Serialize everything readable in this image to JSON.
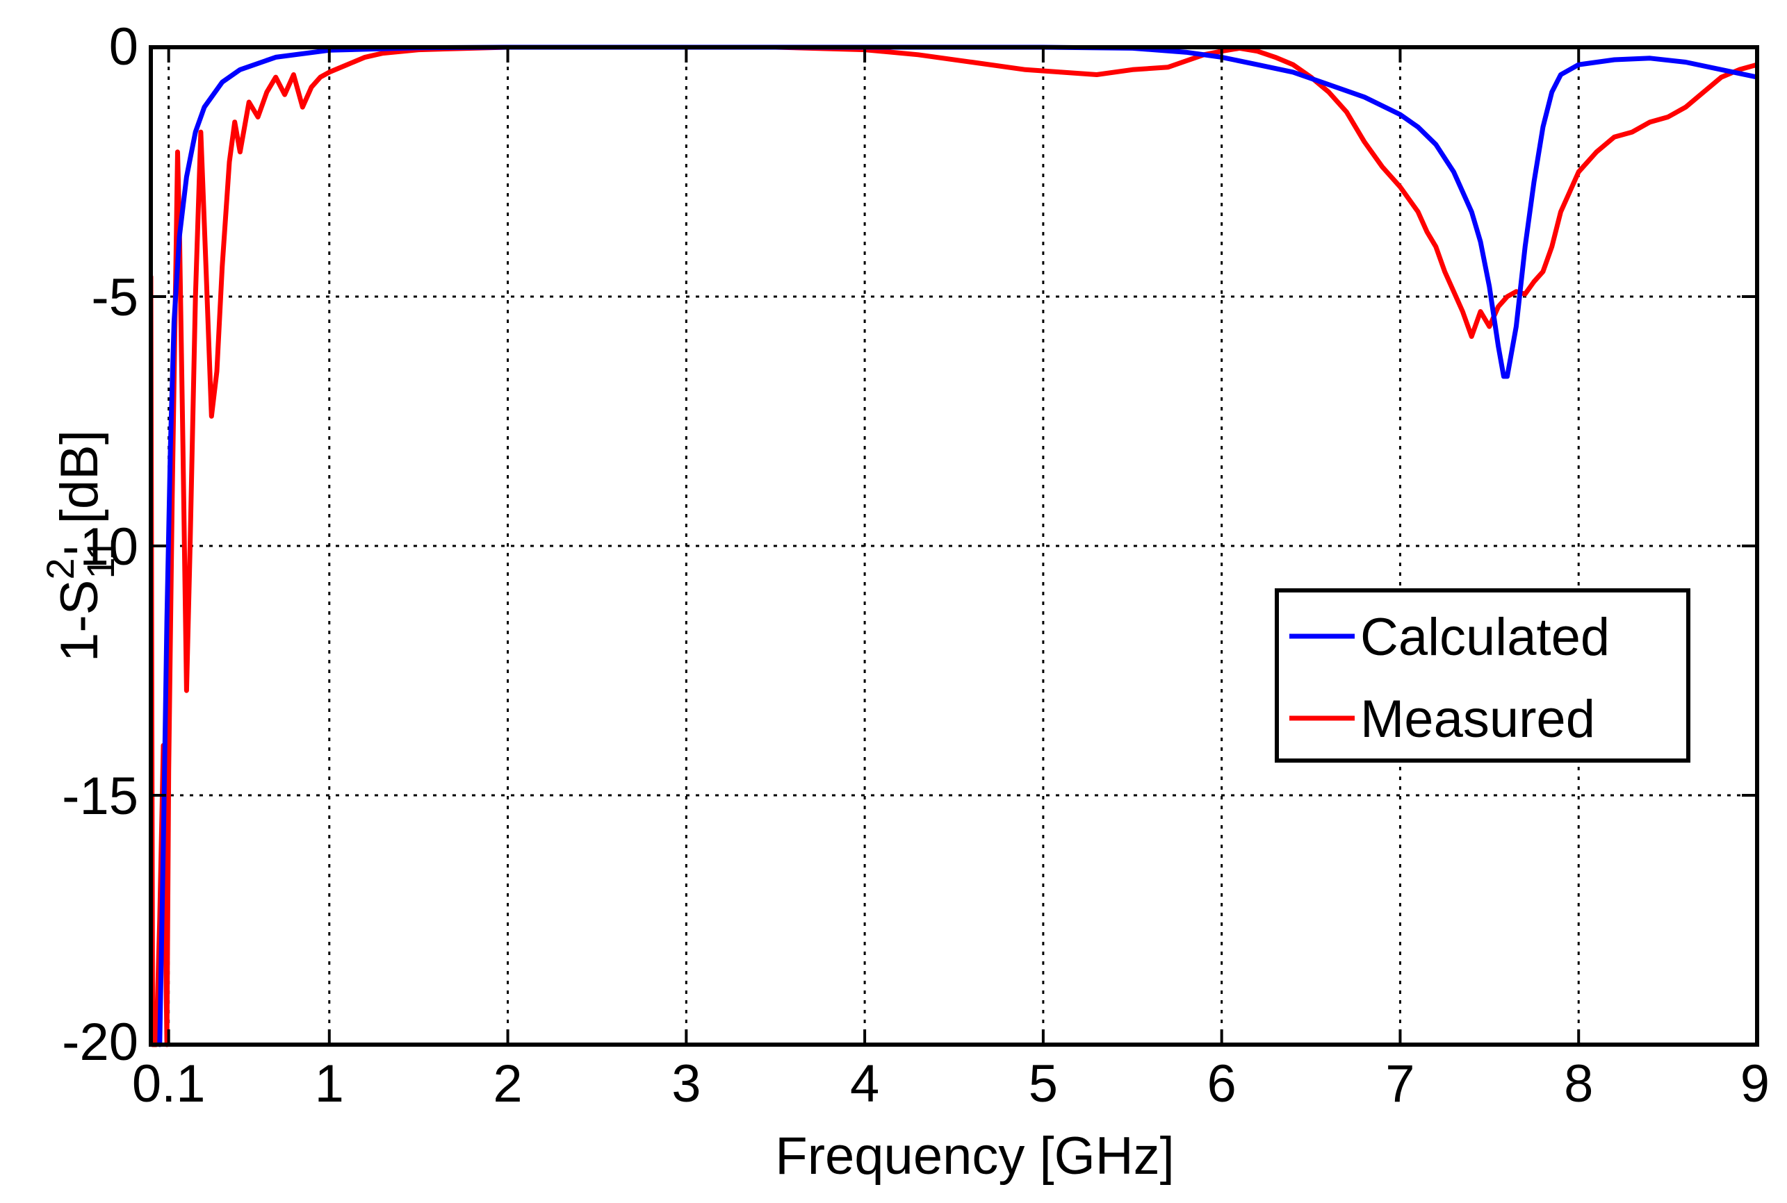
{
  "chart_data": {
    "type": "line",
    "xlabel": "Frequency [GHz]",
    "ylabel": {
      "prefix": "1-S",
      "superscript": "2",
      "subscript": "11",
      "suffix": " [dB]"
    },
    "xlim": [
      0,
      9
    ],
    "ylim": [
      -20,
      0
    ],
    "grid": true,
    "legend_position": "right",
    "x_ticks": [
      0.1,
      1,
      2,
      3,
      4,
      5,
      6,
      7,
      8,
      9
    ],
    "x_tick_labels": [
      "0.1",
      "1",
      "2",
      "3",
      "4",
      "5",
      "6",
      "7",
      "8",
      "9"
    ],
    "y_ticks": [
      0,
      -5,
      -10,
      -15,
      -20
    ],
    "y_tick_labels": [
      "0",
      "-5",
      "-10",
      "-15",
      "-20"
    ],
    "series": [
      {
        "name": "Calculated",
        "color": "#0000ff",
        "points": [
          [
            0.05,
            -20
          ],
          [
            0.07,
            -16
          ],
          [
            0.09,
            -11.5
          ],
          [
            0.11,
            -8
          ],
          [
            0.13,
            -5.5
          ],
          [
            0.16,
            -3.8
          ],
          [
            0.2,
            -2.6
          ],
          [
            0.25,
            -1.7
          ],
          [
            0.3,
            -1.2
          ],
          [
            0.4,
            -0.7
          ],
          [
            0.5,
            -0.45
          ],
          [
            0.7,
            -0.2
          ],
          [
            1.0,
            -0.06
          ],
          [
            1.5,
            -0.01
          ],
          [
            2,
            0
          ],
          [
            3,
            0
          ],
          [
            4,
            0
          ],
          [
            5,
            0
          ],
          [
            5.5,
            -0.02
          ],
          [
            5.8,
            -0.1
          ],
          [
            6.0,
            -0.2
          ],
          [
            6.2,
            -0.35
          ],
          [
            6.4,
            -0.5
          ],
          [
            6.6,
            -0.75
          ],
          [
            6.8,
            -1.0
          ],
          [
            7.0,
            -1.35
          ],
          [
            7.1,
            -1.6
          ],
          [
            7.2,
            -1.95
          ],
          [
            7.3,
            -2.5
          ],
          [
            7.4,
            -3.3
          ],
          [
            7.45,
            -3.9
          ],
          [
            7.5,
            -4.8
          ],
          [
            7.55,
            -6.0
          ],
          [
            7.58,
            -6.6
          ],
          [
            7.6,
            -6.6
          ],
          [
            7.65,
            -5.6
          ],
          [
            7.7,
            -4.0
          ],
          [
            7.75,
            -2.7
          ],
          [
            7.8,
            -1.6
          ],
          [
            7.85,
            -0.9
          ],
          [
            7.9,
            -0.55
          ],
          [
            8.0,
            -0.35
          ],
          [
            8.2,
            -0.25
          ],
          [
            8.4,
            -0.22
          ],
          [
            8.6,
            -0.3
          ],
          [
            8.8,
            -0.45
          ],
          [
            9.0,
            -0.6
          ]
        ]
      },
      {
        "name": "Measured",
        "color": "#ff0000",
        "points": [
          [
            0.0,
            -4.6
          ],
          [
            0.01,
            -20
          ],
          [
            0.03,
            -20
          ],
          [
            0.05,
            -17.5
          ],
          [
            0.07,
            -14
          ],
          [
            0.09,
            -20
          ],
          [
            0.1,
            -14.5
          ],
          [
            0.12,
            -9
          ],
          [
            0.14,
            -4.5
          ],
          [
            0.15,
            -2.1
          ],
          [
            0.16,
            -3.6
          ],
          [
            0.18,
            -8
          ],
          [
            0.2,
            -12.9
          ],
          [
            0.22,
            -10
          ],
          [
            0.25,
            -5
          ],
          [
            0.28,
            -1.7
          ],
          [
            0.31,
            -4.5
          ],
          [
            0.34,
            -7.4
          ],
          [
            0.37,
            -6.5
          ],
          [
            0.4,
            -4.4
          ],
          [
            0.44,
            -2.3
          ],
          [
            0.47,
            -1.5
          ],
          [
            0.5,
            -2.1
          ],
          [
            0.55,
            -1.1
          ],
          [
            0.6,
            -1.4
          ],
          [
            0.65,
            -0.9
          ],
          [
            0.7,
            -0.6
          ],
          [
            0.75,
            -0.95
          ],
          [
            0.8,
            -0.55
          ],
          [
            0.85,
            -1.2
          ],
          [
            0.9,
            -0.8
          ],
          [
            0.95,
            -0.6
          ],
          [
            1.0,
            -0.5
          ],
          [
            1.1,
            -0.35
          ],
          [
            1.2,
            -0.2
          ],
          [
            1.3,
            -0.12
          ],
          [
            1.5,
            -0.05
          ],
          [
            2,
            0
          ],
          [
            3,
            0
          ],
          [
            3.5,
            0
          ],
          [
            4,
            -0.05
          ],
          [
            4.3,
            -0.15
          ],
          [
            4.6,
            -0.3
          ],
          [
            4.9,
            -0.45
          ],
          [
            5.1,
            -0.5
          ],
          [
            5.3,
            -0.55
          ],
          [
            5.5,
            -0.45
          ],
          [
            5.7,
            -0.4
          ],
          [
            5.9,
            -0.15
          ],
          [
            6.0,
            -0.08
          ],
          [
            6.1,
            -0.02
          ],
          [
            6.2,
            -0.08
          ],
          [
            6.3,
            -0.2
          ],
          [
            6.4,
            -0.35
          ],
          [
            6.5,
            -0.6
          ],
          [
            6.6,
            -0.9
          ],
          [
            6.7,
            -1.3
          ],
          [
            6.8,
            -1.9
          ],
          [
            6.9,
            -2.4
          ],
          [
            7.0,
            -2.8
          ],
          [
            7.1,
            -3.3
          ],
          [
            7.15,
            -3.7
          ],
          [
            7.2,
            -4.0
          ],
          [
            7.25,
            -4.5
          ],
          [
            7.3,
            -4.9
          ],
          [
            7.35,
            -5.3
          ],
          [
            7.4,
            -5.8
          ],
          [
            7.45,
            -5.3
          ],
          [
            7.5,
            -5.6
          ],
          [
            7.55,
            -5.2
          ],
          [
            7.6,
            -5.0
          ],
          [
            7.65,
            -4.9
          ],
          [
            7.7,
            -4.95
          ],
          [
            7.75,
            -4.7
          ],
          [
            7.8,
            -4.5
          ],
          [
            7.85,
            -4.0
          ],
          [
            7.9,
            -3.3
          ],
          [
            7.95,
            -2.9
          ],
          [
            8.0,
            -2.5
          ],
          [
            8.1,
            -2.1
          ],
          [
            8.2,
            -1.8
          ],
          [
            8.3,
            -1.7
          ],
          [
            8.4,
            -1.5
          ],
          [
            8.5,
            -1.4
          ],
          [
            8.6,
            -1.2
          ],
          [
            8.7,
            -0.9
          ],
          [
            8.8,
            -0.6
          ],
          [
            8.9,
            -0.45
          ],
          [
            9.0,
            -0.35
          ]
        ]
      }
    ]
  }
}
